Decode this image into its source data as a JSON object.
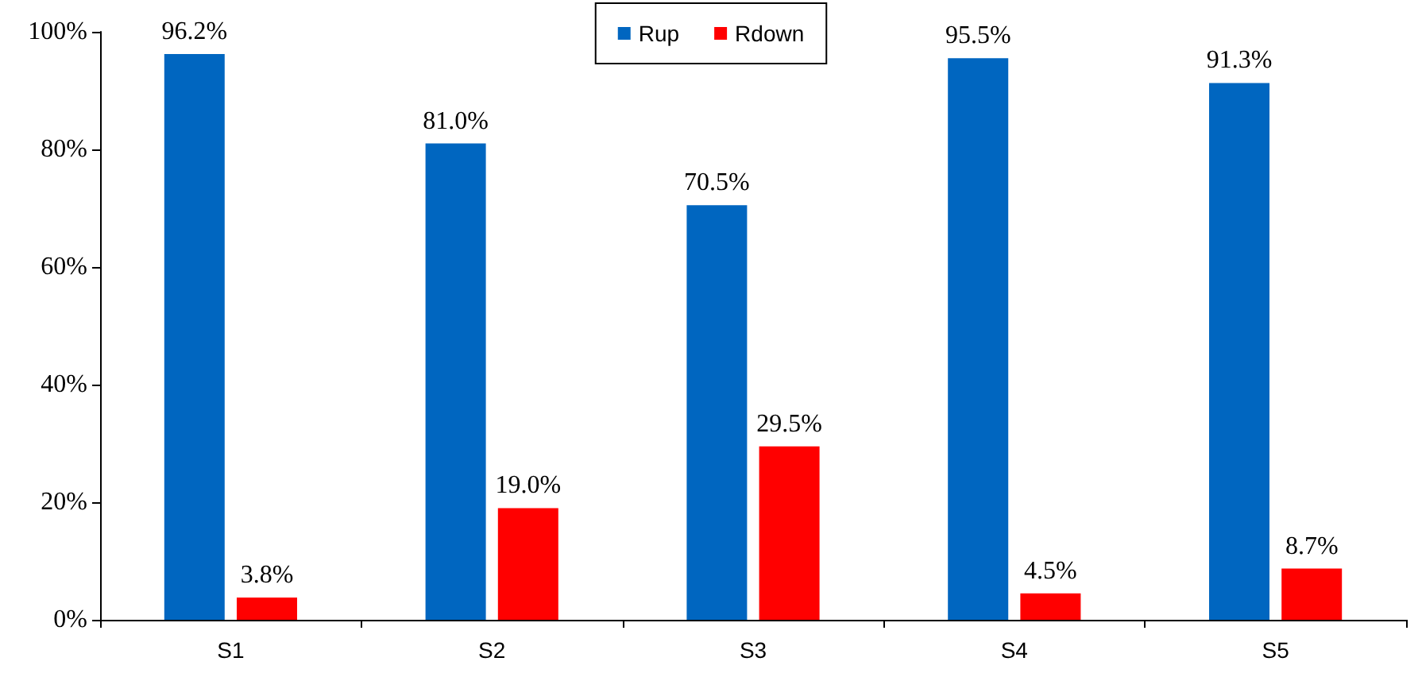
{
  "chart_data": {
    "type": "bar",
    "categories": [
      "S1",
      "S2",
      "S3",
      "S4",
      "S5"
    ],
    "series": [
      {
        "name": "Rup",
        "color": "#0066c0",
        "values": [
          96.2,
          81.0,
          70.5,
          95.5,
          91.3
        ],
        "value_labels": [
          "96.2%",
          "81.0%",
          "70.5%",
          "95.5%",
          "91.3%"
        ]
      },
      {
        "name": "Rdown",
        "color": "#ff0000",
        "values": [
          3.8,
          19.0,
          29.5,
          4.5,
          8.7
        ],
        "value_labels": [
          "3.8%",
          "19.0%",
          "29.5%",
          "4.5%",
          "8.7%"
        ]
      }
    ],
    "ylim": [
      0,
      100
    ],
    "yticks": [
      {
        "value": 0,
        "label": "0%"
      },
      {
        "value": 20,
        "label": "20%"
      },
      {
        "value": 40,
        "label": "40%"
      },
      {
        "value": 60,
        "label": "60%"
      },
      {
        "value": 80,
        "label": "80%"
      },
      {
        "value": 100,
        "label": "100%"
      }
    ],
    "grid": false,
    "legend": "top"
  }
}
